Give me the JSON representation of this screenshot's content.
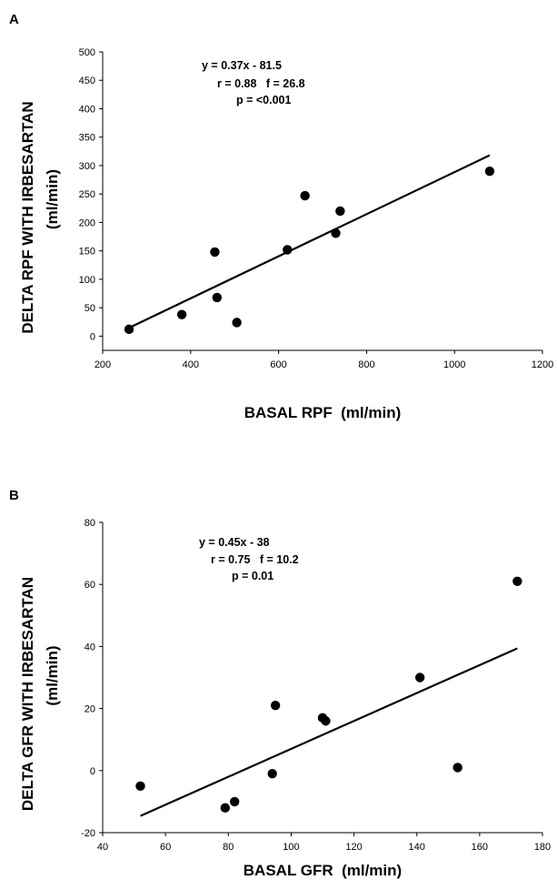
{
  "chart_data": [
    {
      "panel": "A",
      "type": "scatter",
      "xlabel": "BASAL RPF  (ml/min)",
      "ylabel_lines": [
        "DELTA RPF WITH IRBESARTAN",
        "(ml/min)"
      ],
      "xlim": [
        200,
        1200
      ],
      "ylim": [
        -25,
        500
      ],
      "xticks": [
        200,
        400,
        600,
        800,
        1000,
        1200
      ],
      "yticks": [
        0,
        50,
        100,
        150,
        200,
        250,
        300,
        350,
        400,
        450,
        500
      ],
      "points": [
        {
          "x": 260,
          "y": 12
        },
        {
          "x": 380,
          "y": 38
        },
        {
          "x": 455,
          "y": 148
        },
        {
          "x": 460,
          "y": 68
        },
        {
          "x": 505,
          "y": 24
        },
        {
          "x": 620,
          "y": 152
        },
        {
          "x": 660,
          "y": 247
        },
        {
          "x": 730,
          "y": 181
        },
        {
          "x": 740,
          "y": 220
        },
        {
          "x": 1080,
          "y": 290
        }
      ],
      "fit": {
        "slope": 0.37,
        "intercept": -81.5,
        "x_from": 260,
        "x_to": 1080
      },
      "annotations": [
        "y = 0.37x - 81.5",
        "r = 0.88   f = 26.8",
        "p = <0.001"
      ]
    },
    {
      "panel": "B",
      "type": "scatter",
      "xlabel": "BASAL GFR  (ml/min)",
      "ylabel_lines": [
        "DELTA GFR WITH IRBESARTAN",
        "(ml/min)"
      ],
      "xlim": [
        40,
        180
      ],
      "ylim": [
        -20,
        80
      ],
      "xticks": [
        40,
        60,
        80,
        100,
        120,
        140,
        160,
        180
      ],
      "yticks": [
        -20,
        0,
        20,
        40,
        60,
        80
      ],
      "points": [
        {
          "x": 52,
          "y": -5
        },
        {
          "x": 79,
          "y": -12
        },
        {
          "x": 82,
          "y": -10
        },
        {
          "x": 94,
          "y": -1
        },
        {
          "x": 95,
          "y": 21
        },
        {
          "x": 110,
          "y": 17
        },
        {
          "x": 111,
          "y": 16
        },
        {
          "x": 141,
          "y": 30
        },
        {
          "x": 153,
          "y": 1
        },
        {
          "x": 172,
          "y": 61
        }
      ],
      "fit": {
        "slope": 0.45,
        "intercept": -38,
        "x_from": 52,
        "x_to": 172
      },
      "annotations": [
        "y = 0.45x - 38",
        "r = 0.75   f = 10.2",
        "p = 0.01"
      ]
    }
  ]
}
